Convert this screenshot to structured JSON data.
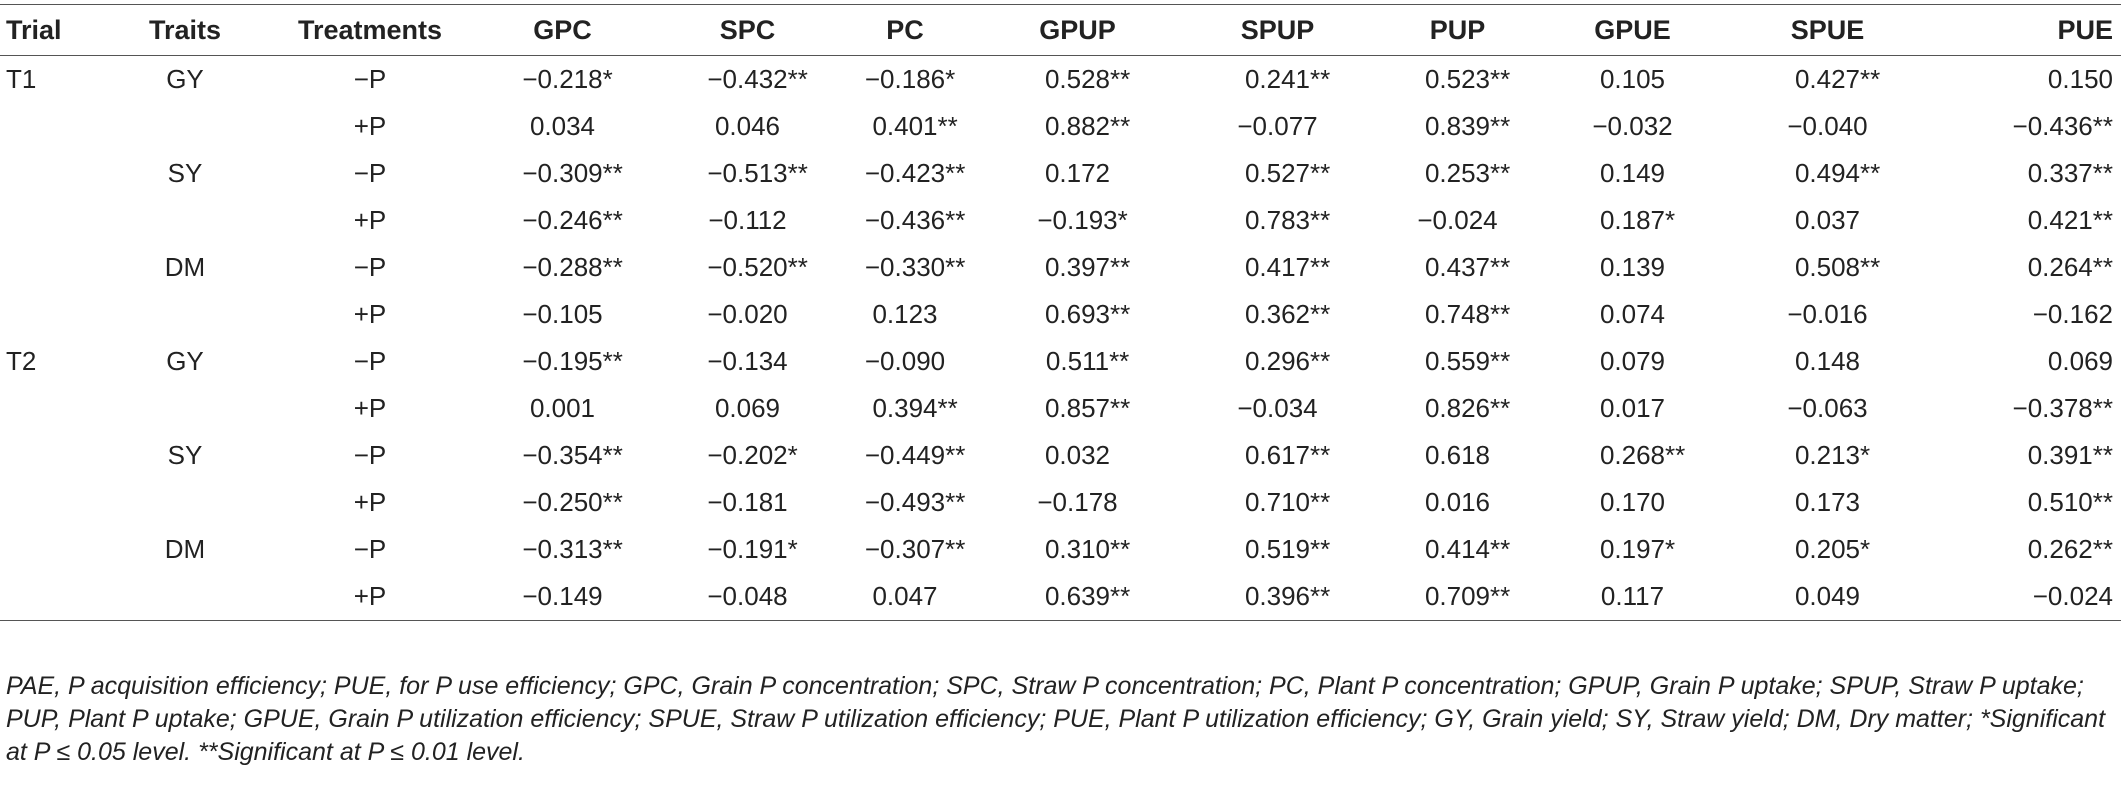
{
  "table": {
    "headers": [
      "Trial",
      "Traits",
      "Treatments",
      "GPC",
      "SPC",
      "PC",
      "GPUP",
      "SPUP",
      "PUP",
      "GPUE",
      "SPUE",
      "PUE"
    ],
    "rows": [
      {
        "trial": "T1",
        "trait": "GY",
        "treatment": "−P",
        "values": [
          "−0.218*",
          "−0.432**",
          "−0.186*",
          "0.528**",
          "0.241**",
          "0.523**",
          "0.105",
          "0.427**",
          "0.150"
        ]
      },
      {
        "trial": "",
        "trait": "",
        "treatment": "+P",
        "values": [
          "0.034",
          "0.046",
          "0.401**",
          "0.882**",
          "−0.077",
          "0.839**",
          "−0.032",
          "−0.040",
          "−0.436**"
        ]
      },
      {
        "trial": "",
        "trait": "SY",
        "treatment": "−P",
        "values": [
          "−0.309**",
          "−0.513**",
          "−0.423**",
          "0.172",
          "0.527**",
          "0.253**",
          "0.149",
          "0.494**",
          "0.337**"
        ]
      },
      {
        "trial": "",
        "trait": "",
        "treatment": "+P",
        "values": [
          "−0.246**",
          "−0.112",
          "−0.436**",
          "−0.193*",
          "0.783**",
          "−0.024",
          "0.187*",
          "0.037",
          "0.421**"
        ]
      },
      {
        "trial": "",
        "trait": "DM",
        "treatment": "−P",
        "values": [
          "−0.288**",
          "−0.520**",
          "−0.330**",
          "0.397**",
          "0.417**",
          "0.437**",
          "0.139",
          "0.508**",
          "0.264**"
        ]
      },
      {
        "trial": "",
        "trait": "",
        "treatment": "+P",
        "values": [
          "−0.105",
          "−0.020",
          "0.123",
          "0.693**",
          "0.362**",
          "0.748**",
          "0.074",
          "−0.016",
          "−0.162"
        ]
      },
      {
        "trial": "T2",
        "trait": "GY",
        "treatment": "−P",
        "values": [
          "−0.195**",
          "−0.134",
          "−0.090",
          "0.511**",
          "0.296**",
          "0.559**",
          "0.079",
          "0.148",
          "0.069"
        ]
      },
      {
        "trial": "",
        "trait": "",
        "treatment": "+P",
        "values": [
          "0.001",
          "0.069",
          "0.394**",
          "0.857**",
          "−0.034",
          "0.826**",
          "0.017",
          "−0.063",
          "−0.378**"
        ]
      },
      {
        "trial": "",
        "trait": "SY",
        "treatment": "−P",
        "values": [
          "−0.354**",
          "−0.202*",
          "−0.449**",
          "0.032",
          "0.617**",
          "0.618",
          "0.268**",
          "0.213*",
          "0.391**"
        ]
      },
      {
        "trial": "",
        "trait": "",
        "treatment": "+P",
        "values": [
          "−0.250**",
          "−0.181",
          "−0.493**",
          "−0.178",
          "0.710**",
          "0.016",
          "0.170",
          "0.173",
          "0.510**"
        ]
      },
      {
        "trial": "",
        "trait": "DM",
        "treatment": "−P",
        "values": [
          "−0.313**",
          "−0.191*",
          "−0.307**",
          "0.310**",
          "0.519**",
          "0.414**",
          "0.197*",
          "0.205*",
          "0.262**"
        ]
      },
      {
        "trial": "",
        "trait": "",
        "treatment": "+P",
        "values": [
          "−0.149",
          "−0.048",
          "0.047",
          "0.639**",
          "0.396**",
          "0.709**",
          "0.117",
          "0.049",
          "−0.024"
        ]
      }
    ]
  },
  "footnote": "PAE, P acquisition efficiency; PUE, for P use efficiency; GPC, Grain P concentration; SPC, Straw P concentration; PC, Plant P concentration; GPUP, Grain P uptake; SPUP, Straw P uptake; PUP, Plant P uptake; GPUE, Grain P utilization efficiency; SPUE, Straw P utilization efficiency; PUE, Plant P utilization efficiency; GY, Grain yield; SY, Straw yield; DM, Dry matter; *Significant at P ≤ 0.05 level. **Significant at P ≤ 0.01 level."
}
